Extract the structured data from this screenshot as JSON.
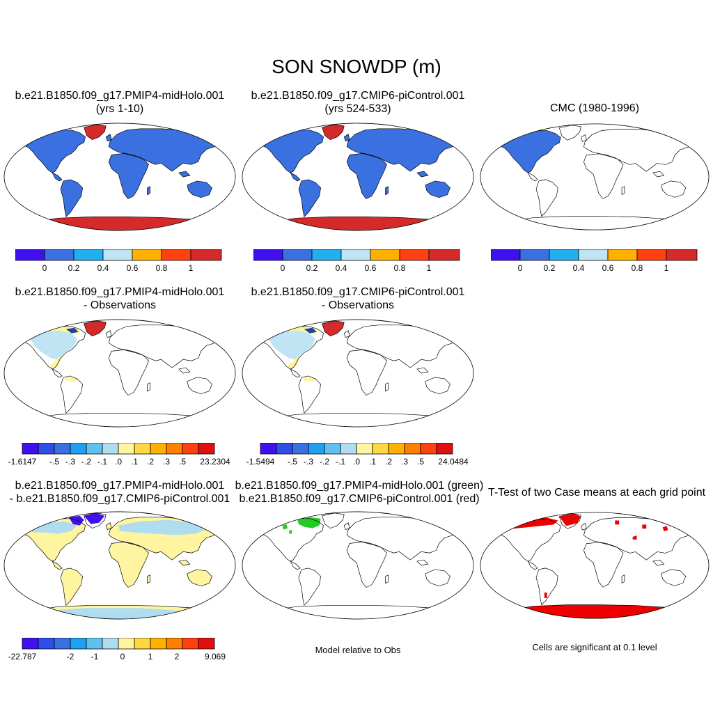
{
  "title": "SON SNOWDP (m)",
  "colors": {
    "deep_blue": "#4010f0",
    "blue": "#3a70e0",
    "sky": "#20b0f0",
    "pale_blue": "#c0e4f4",
    "yellow_orange": "#ffb000",
    "orange_red": "#ff4010",
    "red": "#d42a2a",
    "pale_yellow": "#fff5a0",
    "green": "#22cc22",
    "sig_red": "#ee0000"
  },
  "panels": [
    {
      "id": "p1",
      "title_line1": "b.e21.B1850.f09_g17.PMIP4-midHolo.001",
      "title_line2": "(yrs 1-10)",
      "colorbar": {
        "ticks": [
          "0",
          "0.2",
          "0.4",
          "0.6",
          "0.8",
          "1"
        ]
      }
    },
    {
      "id": "p2",
      "title_line1": "b.e21.B1850.f09_g17.CMIP6-piControl.001",
      "title_line2": "(yrs 524-533)",
      "colorbar": {
        "ticks": [
          "0",
          "0.2",
          "0.4",
          "0.6",
          "0.8",
          "1"
        ]
      }
    },
    {
      "id": "p3",
      "title_line1": "CMC (1980-1996)",
      "title_line2": "",
      "colorbar": {
        "ticks": [
          "0",
          "0.2",
          "0.4",
          "0.6",
          "0.8",
          "1"
        ]
      }
    },
    {
      "id": "p4",
      "title_line1": "b.e21.B1850.f09_g17.PMIP4-midHolo.001",
      "title_line2": "- Observations",
      "colorbar": {
        "ticks": [
          "-1.6147",
          "-.5",
          "-.3",
          "-.2",
          "-.1",
          ".0",
          ".1",
          ".2",
          ".3",
          ".5",
          "23.2304"
        ]
      }
    },
    {
      "id": "p5",
      "title_line1": "b.e21.B1850.f09_g17.CMIP6-piControl.001",
      "title_line2": "- Observations",
      "colorbar": {
        "ticks": [
          "-1.5494",
          "-.5",
          "-.3",
          "-.2",
          "-.1",
          ".0",
          ".1",
          ".2",
          ".3",
          ".5",
          "24.0484"
        ]
      }
    },
    {
      "id": "p6",
      "title_line1": "b.e21.B1850.f09_g17.PMIP4-midHolo.001",
      "title_line2": "- b.e21.B1850.f09_g17.CMIP6-piControl.001",
      "colorbar": {
        "ticks": [
          "-22.787",
          "-2",
          "-1",
          "0",
          "1",
          "2",
          "9.069"
        ]
      }
    },
    {
      "id": "p7",
      "title_line1": "b.e21.B1850.f09_g17.PMIP4-midHolo.001 (green)",
      "title_line2": "b.e21.B1850.f09_g17.CMIP6-piControl.001 (red)",
      "note": "Model relative to Obs"
    },
    {
      "id": "p8",
      "title_line1": "T-Test of two Case means at each grid point",
      "title_line2": "",
      "note": "Cells are significant at 0.1 level"
    }
  ]
}
